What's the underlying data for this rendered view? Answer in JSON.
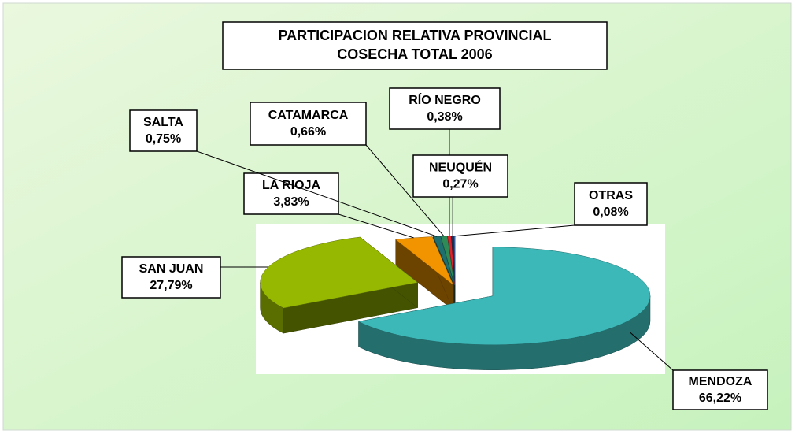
{
  "chart_data": {
    "type": "pie",
    "title": "PARTICIPACION RELATIVA PROVINCIAL",
    "subtitle": "COSECHA TOTAL 2006",
    "categories": [
      "MENDOZA",
      "SAN  JUAN",
      "LA RIOJA",
      "SALTA",
      "CATAMARCA",
      "RÍO  NEGRO",
      "NEUQUÉN",
      "OTRAS"
    ],
    "values": [
      66.22,
      27.79,
      3.83,
      0.75,
      0.66,
      0.38,
      0.27,
      0.08
    ],
    "value_labels": [
      "66,22%",
      "27,79%",
      "3,83%",
      "0,75%",
      "0,66%",
      "0,38%",
      "0,27%",
      "0,08%"
    ],
    "colors": [
      "#3cb8b8",
      "#96b800",
      "#f29400",
      "#1f6f6f",
      "#2e8b57",
      "#e0202a",
      "#203050",
      "#4a7fd0"
    ]
  }
}
